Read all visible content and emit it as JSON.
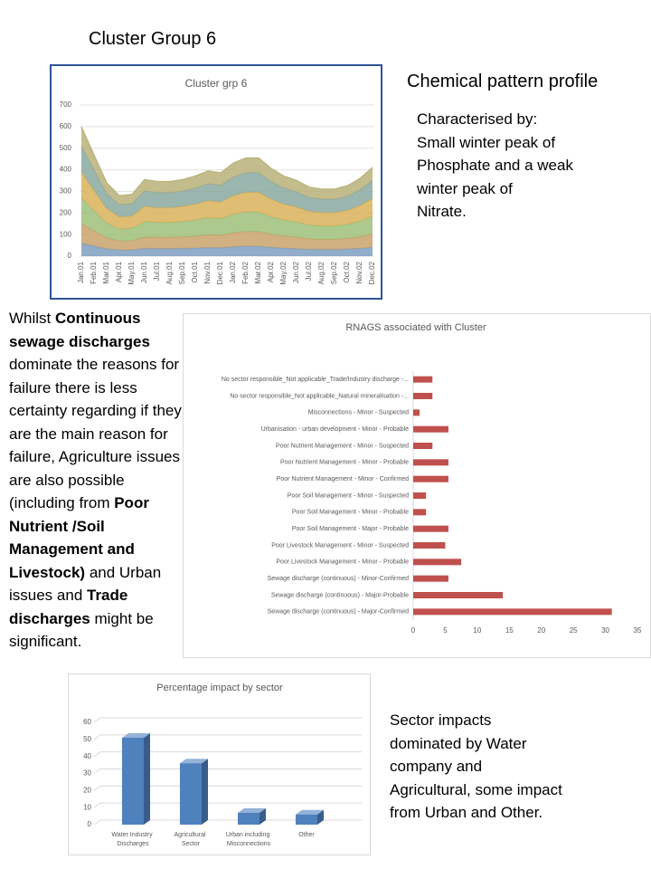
{
  "slide": {
    "title": "Cluster Group 6",
    "subtitle": "Chemical pattern profile",
    "characterised": [
      "Characterised by:",
      "Small winter peak of",
      "Phosphate and a weak",
      "winter peak of",
      "Nitrate."
    ],
    "summary": [
      {
        "text": "Whilst ",
        "bold": false
      },
      {
        "text": "Continuous sewage discharges",
        "bold": true
      },
      {
        "text": " dominate the reasons for failure there is less certainty regarding if they are the main reason for failure, Agriculture issues are also possible (including from ",
        "bold": false
      },
      {
        "text": "Poor Nutrient /Soil Management and Livestock)",
        "bold": true
      },
      {
        "text": " and Urban issues and ",
        "bold": false
      },
      {
        "text": "Trade discharges",
        "bold": true
      },
      {
        "text": " might be significant.",
        "bold": false
      }
    ],
    "sector_note": [
      "Sector impacts",
      "dominated by Water",
      "company and",
      "Agricultural, some impact",
      "from Urban and Other."
    ]
  },
  "chart_data": [
    {
      "type": "area",
      "stacked": true,
      "title": "Cluster grp 6",
      "categories": [
        "Jan.01",
        "Feb.01",
        "Mar.01",
        "Apr.01",
        "May.01",
        "Jun.01",
        "Jul.01",
        "Aug.01",
        "Sep.01",
        "Oct.01",
        "Nov.01",
        "Dec.01",
        "Jan.02",
        "Feb.02",
        "Mar.02",
        "Apr.02",
        "May.02",
        "Jun.02",
        "Jul.02",
        "Aug.02",
        "Sep.02",
        "Oct.02",
        "Nov.02",
        "Dec.02"
      ],
      "series": [
        {
          "color": "#7f9fc0",
          "values": [
            60,
            47,
            34,
            28,
            29,
            36,
            35,
            35,
            36,
            37,
            40,
            39,
            43,
            46,
            46,
            41,
            37,
            35,
            32,
            31,
            31,
            33,
            36,
            41
          ]
        },
        {
          "color": "#c9a26b",
          "values": [
            90,
            70,
            51,
            42,
            43,
            53,
            52,
            52,
            53,
            56,
            59,
            58,
            65,
            68,
            68,
            61,
            56,
            53,
            48,
            47,
            47,
            49,
            54,
            62
          ]
        },
        {
          "color": "#9fbf7a",
          "values": [
            120,
            94,
            68,
            56,
            57,
            71,
            69,
            69,
            71,
            74,
            79,
            77,
            86,
            91,
            91,
            81,
            74,
            70,
            64,
            62,
            62,
            65,
            72,
            82
          ]
        },
        {
          "color": "#d9b25a",
          "values": [
            120,
            94,
            68,
            56,
            57,
            71,
            69,
            69,
            71,
            74,
            79,
            77,
            86,
            91,
            91,
            81,
            74,
            70,
            64,
            62,
            62,
            65,
            72,
            82
          ]
        },
        {
          "color": "#8aa9a0",
          "values": [
            120,
            94,
            68,
            56,
            57,
            71,
            69,
            69,
            71,
            74,
            79,
            77,
            86,
            91,
            91,
            81,
            74,
            70,
            64,
            62,
            62,
            65,
            72,
            82
          ]
        },
        {
          "color": "#b8b27a",
          "values": [
            90,
            70,
            51,
            42,
            43,
            53,
            52,
            52,
            53,
            56,
            59,
            58,
            65,
            68,
            68,
            61,
            56,
            53,
            48,
            47,
            47,
            49,
            54,
            62
          ]
        }
      ],
      "ylim": [
        0,
        700
      ],
      "yticks": [
        0,
        100,
        200,
        300,
        400,
        500,
        600,
        700
      ],
      "grid": true
    },
    {
      "type": "barh",
      "title": "RNAGS associated with Cluster",
      "categories": [
        "No sector responsible_Not applicable_Trade/Industry discharge -...",
        "No sector responsible_Not applicable_Natural mineralisation -...",
        "Misconnections - Minor - Suspected",
        "Urbanisation - urban development - Minor - Probable",
        "Poor Nutrient Management - Minor - Suspected",
        "Poor Nutrient Management - Minor - Probable",
        "Poor Nutrient Management - Minor - Confirmed",
        "Poor Soil Management - Minor - Suspected",
        "Poor Soil Management - Minor - Probable",
        "Poor Soil Management - Major - Probable",
        "Poor Livestock Management - Minor - Suspected",
        "Poor Livestock Management - Minor - Probable",
        "Sewage discharge (continuous) - Minor-Confirmed",
        "Sewage discharge (continuous) - Major-Probable",
        "Sewage discharge (continuous) - Major-Confirmed"
      ],
      "values": [
        3,
        3,
        1,
        5.5,
        3,
        5.5,
        5.5,
        2,
        2,
        5.5,
        5,
        7.5,
        5.5,
        14,
        31
      ],
      "color": "#c0504d",
      "xlim": [
        0,
        35
      ],
      "xticks": [
        0,
        5,
        10,
        15,
        20,
        25,
        30,
        35
      ],
      "grid": false
    },
    {
      "type": "bar",
      "title": "Percentage impact by sector",
      "categories": [
        "Water Industry Discharges",
        "Agricultural Sector",
        "Urban including Misconnections",
        "Other"
      ],
      "values": [
        51,
        36,
        7,
        6
      ],
      "color": "#4f81bd",
      "ylim": [
        0,
        60
      ],
      "yticks": [
        0,
        10,
        20,
        30,
        40,
        50,
        60
      ],
      "grid": true
    }
  ]
}
